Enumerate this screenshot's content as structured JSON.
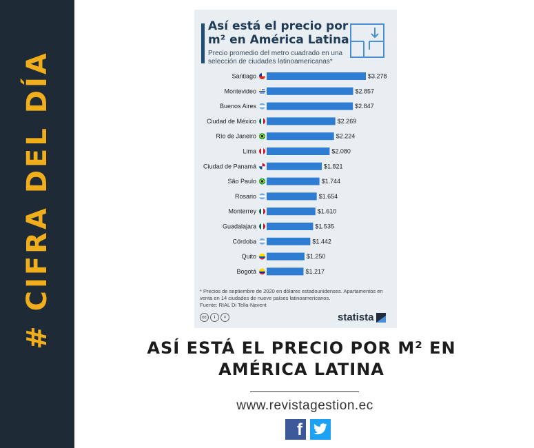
{
  "sidebar": {
    "hashtag": "#",
    "label": "CIFRA DEL DÍA",
    "accent_color": "#f0ad1c",
    "background": "#1e2a36"
  },
  "card": {
    "title": "Así está el precio por m² en América Latina",
    "subtitle": "Precio promedio del metro cuadrado en una selección de ciudades latinoamericanas*",
    "icon": "floorplan-icon",
    "footnote": "* Precios de septiembre de 2020 en dólares estadounidenses. Apartamentos en venta en 14 ciudades de nueve países latinoamericanos.",
    "source": "Fuente: RIAL Di Tella-Navent",
    "brand": "statista",
    "license_icons": [
      "cc-icon",
      "by-icon",
      "nd-icon"
    ]
  },
  "chart_data": {
    "type": "bar",
    "orientation": "horizontal",
    "bar_color": "#2e7dd2",
    "categories": [
      "Santiago",
      "Montevideo",
      "Buenos Aires",
      "Ciudad de México",
      "Río de Janeiro",
      "Lima",
      "Ciudad de Panamá",
      "São Paulo",
      "Rosario",
      "Monterrey",
      "Guadalajara",
      "Córdoba",
      "Quito",
      "Bogotá"
    ],
    "flags": [
      "chile-flag-icon",
      "uruguay-flag-icon",
      "argentina-flag-icon",
      "mexico-flag-icon",
      "brazil-flag-icon",
      "peru-flag-icon",
      "panama-flag-icon",
      "brazil-flag-icon",
      "argentina-flag-icon",
      "mexico-flag-icon",
      "mexico-flag-icon",
      "argentina-flag-icon",
      "ecuador-flag-icon",
      "colombia-flag-icon"
    ],
    "values": [
      3278,
      2857,
      2847,
      2269,
      2224,
      2080,
      1821,
      1744,
      1654,
      1610,
      1535,
      1442,
      1250,
      1217
    ],
    "value_labels": [
      "$3.278",
      "$2.857",
      "$2.847",
      "$2.269",
      "$2.224",
      "$2.080",
      "$1.821",
      "$1.744",
      "$1.654",
      "$1.610",
      "$1.535",
      "$1.442",
      "$1.250",
      "$1.217"
    ],
    "xlim": [
      0,
      3278
    ]
  },
  "headline": "ASÍ ESTÁ EL PRECIO POR M² EN AMÉRICA LATINA",
  "url": "www.revistagestion.ec",
  "social": {
    "facebook": "f",
    "twitter": "twitter-icon"
  }
}
